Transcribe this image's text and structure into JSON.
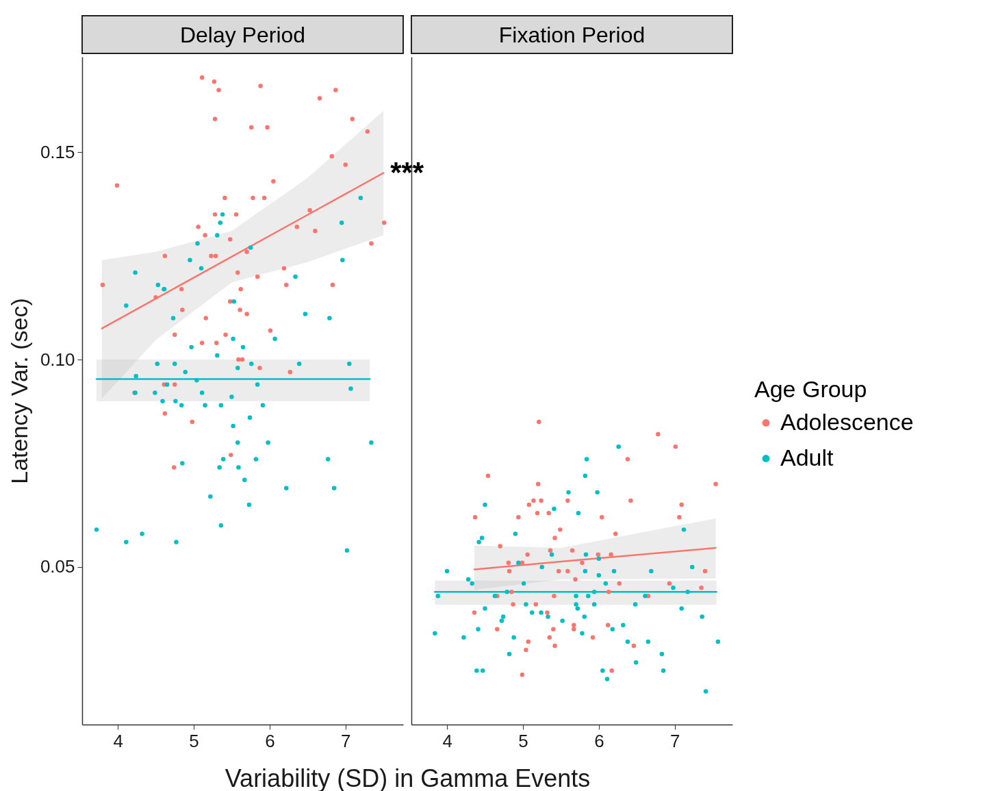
{
  "chart_data": [
    {
      "type": "scatter",
      "title": "Delay Period",
      "legend": "right",
      "legend_title": "Age Group",
      "xlabel": "Variability (SD) in Gamma Events",
      "ylabel": "Latency Var. (sec)",
      "marker": "circle",
      "xlim": [
        3.53,
        7.76
      ],
      "xticks": [
        4,
        5,
        6,
        7
      ],
      "ylim": [
        0.012,
        0.173
      ],
      "yticks": [
        0.05,
        {
          "value": 0.1,
          "label": "0.10"
        },
        0.15
      ],
      "annotations": [
        {
          "text": "***",
          "x": 7.5,
          "y": 0.145
        }
      ],
      "series": [
        {
          "name": "Adolescence",
          "color": "#f8766d",
          "x": [
            5.11,
            5.27,
            5.33,
            5.88,
            6.66,
            6.87,
            5.28,
            5.76,
            5.97,
            7.09,
            7.29,
            3.99,
            6.82,
            7.0,
            6.05,
            5.41,
            5.78,
            5.93,
            5.28,
            5.56,
            6.53,
            5.06,
            5.15,
            6.36,
            6.6,
            7.51,
            5.48,
            7.34,
            4.62,
            5.23,
            5.29,
            5.7,
            5.58,
            6.19,
            5.84,
            6.22,
            6.83,
            3.8,
            5.62,
            4.84,
            4.5,
            5.48,
            4.85,
            5.61,
            5.7,
            5.16,
            6.01,
            4.75,
            5.42,
            5.3,
            5.11,
            5.64,
            5.59,
            5.87,
            6.27,
            4.75,
            4.61,
            4.22,
            4.62,
            4.98,
            5.49,
            4.74
          ],
          "values": [
            0.168,
            0.167,
            0.165,
            0.166,
            0.163,
            0.165,
            0.158,
            0.156,
            0.156,
            0.158,
            0.155,
            0.142,
            0.149,
            0.147,
            0.143,
            0.139,
            0.139,
            0.139,
            0.135,
            0.135,
            0.136,
            0.132,
            0.13,
            0.132,
            0.131,
            0.133,
            0.129,
            0.128,
            0.125,
            0.125,
            0.125,
            0.126,
            0.121,
            0.122,
            0.12,
            0.118,
            0.118,
            0.118,
            0.117,
            0.117,
            0.115,
            0.114,
            0.112,
            0.112,
            0.111,
            0.11,
            0.107,
            0.106,
            0.106,
            0.104,
            0.104,
            0.1,
            0.1,
            0.098,
            0.097,
            0.094,
            0.094,
            0.092,
            0.087,
            0.085,
            0.077,
            0.074
          ]
        },
        {
          "name": "Adult",
          "color": "#00bfc4",
          "x": [
            5.38,
            5.35,
            5.31,
            5.05,
            5.75,
            7.2,
            6.95,
            6.96,
            4.95,
            5.1,
            4.23,
            6.34,
            4.53,
            4.61,
            4.61,
            4.11,
            5.53,
            4.73,
            6.47,
            6.79,
            6.07,
            5.52,
            5.65,
            4.97,
            5.31,
            4.52,
            4.75,
            5.76,
            5.58,
            6.39,
            7.05,
            4.89,
            4.24,
            5.04,
            4.65,
            5.84,
            7.07,
            4.23,
            4.49,
            5.11,
            5.5,
            4.59,
            4.76,
            4.84,
            5.15,
            5.36,
            5.91,
            5.74,
            5.52,
            5.58,
            5.98,
            7.34,
            6.77,
            5.82,
            4.85,
            5.39,
            5.34,
            5.59,
            5.67,
            6.22,
            6.85,
            5.22,
            5.73,
            5.36,
            3.72,
            4.32,
            4.11,
            4.77,
            7.02
          ],
          "values": [
            0.135,
            0.133,
            0.13,
            0.128,
            0.127,
            0.139,
            0.133,
            0.124,
            0.124,
            0.122,
            0.121,
            0.12,
            0.118,
            0.117,
            0.117,
            0.113,
            0.114,
            0.11,
            0.111,
            0.11,
            0.105,
            0.105,
            0.103,
            0.103,
            0.101,
            0.099,
            0.099,
            0.099,
            0.098,
            0.099,
            0.099,
            0.097,
            0.096,
            0.095,
            0.094,
            0.094,
            0.093,
            0.092,
            0.092,
            0.092,
            0.091,
            0.09,
            0.09,
            0.089,
            0.089,
            0.089,
            0.089,
            0.086,
            0.084,
            0.08,
            0.08,
            0.08,
            0.076,
            0.076,
            0.075,
            0.076,
            0.074,
            0.074,
            0.071,
            0.069,
            0.069,
            0.067,
            0.065,
            0.06,
            0.059,
            0.058,
            0.056,
            0.056,
            0.054
          ]
        },
        {
          "type": "line",
          "marker": "none",
          "color": "#f8766d",
          "x": [
            3.79,
            4.5,
            5.5,
            6.5,
            7.5
          ],
          "values": [
            0.1075,
            0.1147,
            0.1248,
            0.1349,
            0.145
          ],
          "lower": [
            0.0906,
            0.1047,
            0.1186,
            0.1235,
            0.13
          ],
          "upper": [
            0.124,
            0.126,
            0.131,
            0.1438,
            0.16
          ]
        },
        {
          "type": "line",
          "marker": "none",
          "color": "#00bfc4",
          "x": [
            3.72,
            7.32
          ],
          "values": [
            0.0953,
            0.0953
          ],
          "lower": [
            0.09,
            0.09
          ],
          "upper": [
            0.1,
            0.1
          ]
        }
      ]
    },
    {
      "type": "scatter",
      "title": "Fixation Period",
      "marker": "circle",
      "tick_labels": "x",
      "xlim": [
        3.53,
        7.76
      ],
      "xticks": [
        4,
        5,
        6,
        7
      ],
      "ylim": [
        0.012,
        0.173
      ],
      "series": [
        {
          "name": "Adolescence",
          "color": "#f8766d",
          "x": [
            5.21,
            6.78,
            7.01,
            6.38,
            4.54,
            5.2,
            7.54,
            6.42,
            5.08,
            5.14,
            5.24,
            5.59,
            7.09,
            4.94,
            5.19,
            5.34,
            4.37,
            6.04,
            7.06,
            5.49,
            5.42,
            6.22,
            4.7,
            5.36,
            5.06,
            5.65,
            5.99,
            6.16,
            4.81,
            4.99,
            5.78,
            4.82,
            5.47,
            5.59,
            7.4,
            5.69,
            6.27,
            6.93,
            7.35,
            4.85,
            6.13,
            4.66,
            5.41,
            6.65,
            4.87,
            5.17,
            4.36,
            5.32,
            5.67,
            5.67,
            6.12,
            4.66,
            5.4,
            5.35,
            5.92,
            5.07,
            5.42,
            6.46,
            5.04,
            6.17,
            4.99
          ],
          "values": [
            0.085,
            0.082,
            0.079,
            0.076,
            0.072,
            0.07,
            0.07,
            0.066,
            0.065,
            0.066,
            0.066,
            0.066,
            0.065,
            0.062,
            0.063,
            0.063,
            0.062,
            0.062,
            0.062,
            0.059,
            0.057,
            0.058,
            0.055,
            0.054,
            0.053,
            0.054,
            0.053,
            0.053,
            0.051,
            0.051,
            0.051,
            0.049,
            0.049,
            0.049,
            0.049,
            0.047,
            0.046,
            0.046,
            0.045,
            0.044,
            0.044,
            0.043,
            0.043,
            0.043,
            0.041,
            0.041,
            0.039,
            0.039,
            0.036,
            0.035,
            0.036,
            0.035,
            0.035,
            0.033,
            0.033,
            0.032,
            0.031,
            0.031,
            0.03,
            0.025,
            0.024
          ]
        },
        {
          "name": "Adult",
          "color": "#00bfc4",
          "x": [
            6.26,
            5.84,
            5.82,
            5.98,
            5.6,
            4.5,
            5.41,
            5.73,
            4.9,
            4.46,
            4.42,
            7.12,
            5.38,
            5.83,
            6.0,
            4.0,
            4.94,
            5.25,
            5.82,
            6.0,
            6.2,
            6.69,
            7.23,
            4.28,
            4.33,
            5.01,
            6.09,
            6.98,
            3.88,
            4.79,
            4.63,
            5.7,
            5.86,
            5.94,
            6.61,
            7.17,
            5.7,
            5.94,
            5.04,
            4.5,
            5.72,
            6.48,
            7.09,
            5.12,
            5.24,
            5.33,
            5.81,
            7.36,
            5.52,
            4.72,
            4.74,
            6.32,
            4.41,
            6.18,
            3.84,
            5.78,
            4.22,
            4.88,
            6.38,
            6.65,
            7.57,
            4.82,
            6.83,
            6.49,
            4.39,
            4.47,
            6.05,
            6.11,
            6.85,
            7.41
          ],
          "values": [
            0.079,
            0.076,
            0.072,
            0.068,
            0.068,
            0.065,
            0.064,
            0.063,
            0.058,
            0.057,
            0.056,
            0.059,
            0.053,
            0.053,
            0.052,
            0.049,
            0.051,
            0.05,
            0.049,
            0.048,
            0.049,
            0.049,
            0.05,
            0.047,
            0.046,
            0.046,
            0.046,
            0.045,
            0.043,
            0.044,
            0.043,
            0.043,
            0.043,
            0.044,
            0.043,
            0.044,
            0.041,
            0.041,
            0.041,
            0.04,
            0.04,
            0.041,
            0.04,
            0.039,
            0.039,
            0.038,
            0.038,
            0.038,
            0.037,
            0.037,
            0.038,
            0.036,
            0.035,
            0.035,
            0.034,
            0.034,
            0.033,
            0.033,
            0.032,
            0.032,
            0.032,
            0.029,
            0.029,
            0.027,
            0.025,
            0.025,
            0.025,
            0.023,
            0.025,
            0.02
          ]
        },
        {
          "type": "line",
          "marker": "none",
          "color": "#f8766d",
          "x": [
            4.36,
            5.5,
            7.54
          ],
          "values": [
            0.0494,
            0.0513,
            0.0546
          ],
          "lower": [
            0.0445,
            0.047,
            0.0472
          ],
          "upper": [
            0.0552,
            0.0546,
            0.0617
          ]
        },
        {
          "type": "line",
          "marker": "none",
          "color": "#00bfc4",
          "x": [
            3.84,
            7.55
          ],
          "values": [
            0.044,
            0.044
          ],
          "lower": [
            0.0409,
            0.0409
          ],
          "upper": [
            0.0467,
            0.0467
          ]
        }
      ]
    }
  ]
}
